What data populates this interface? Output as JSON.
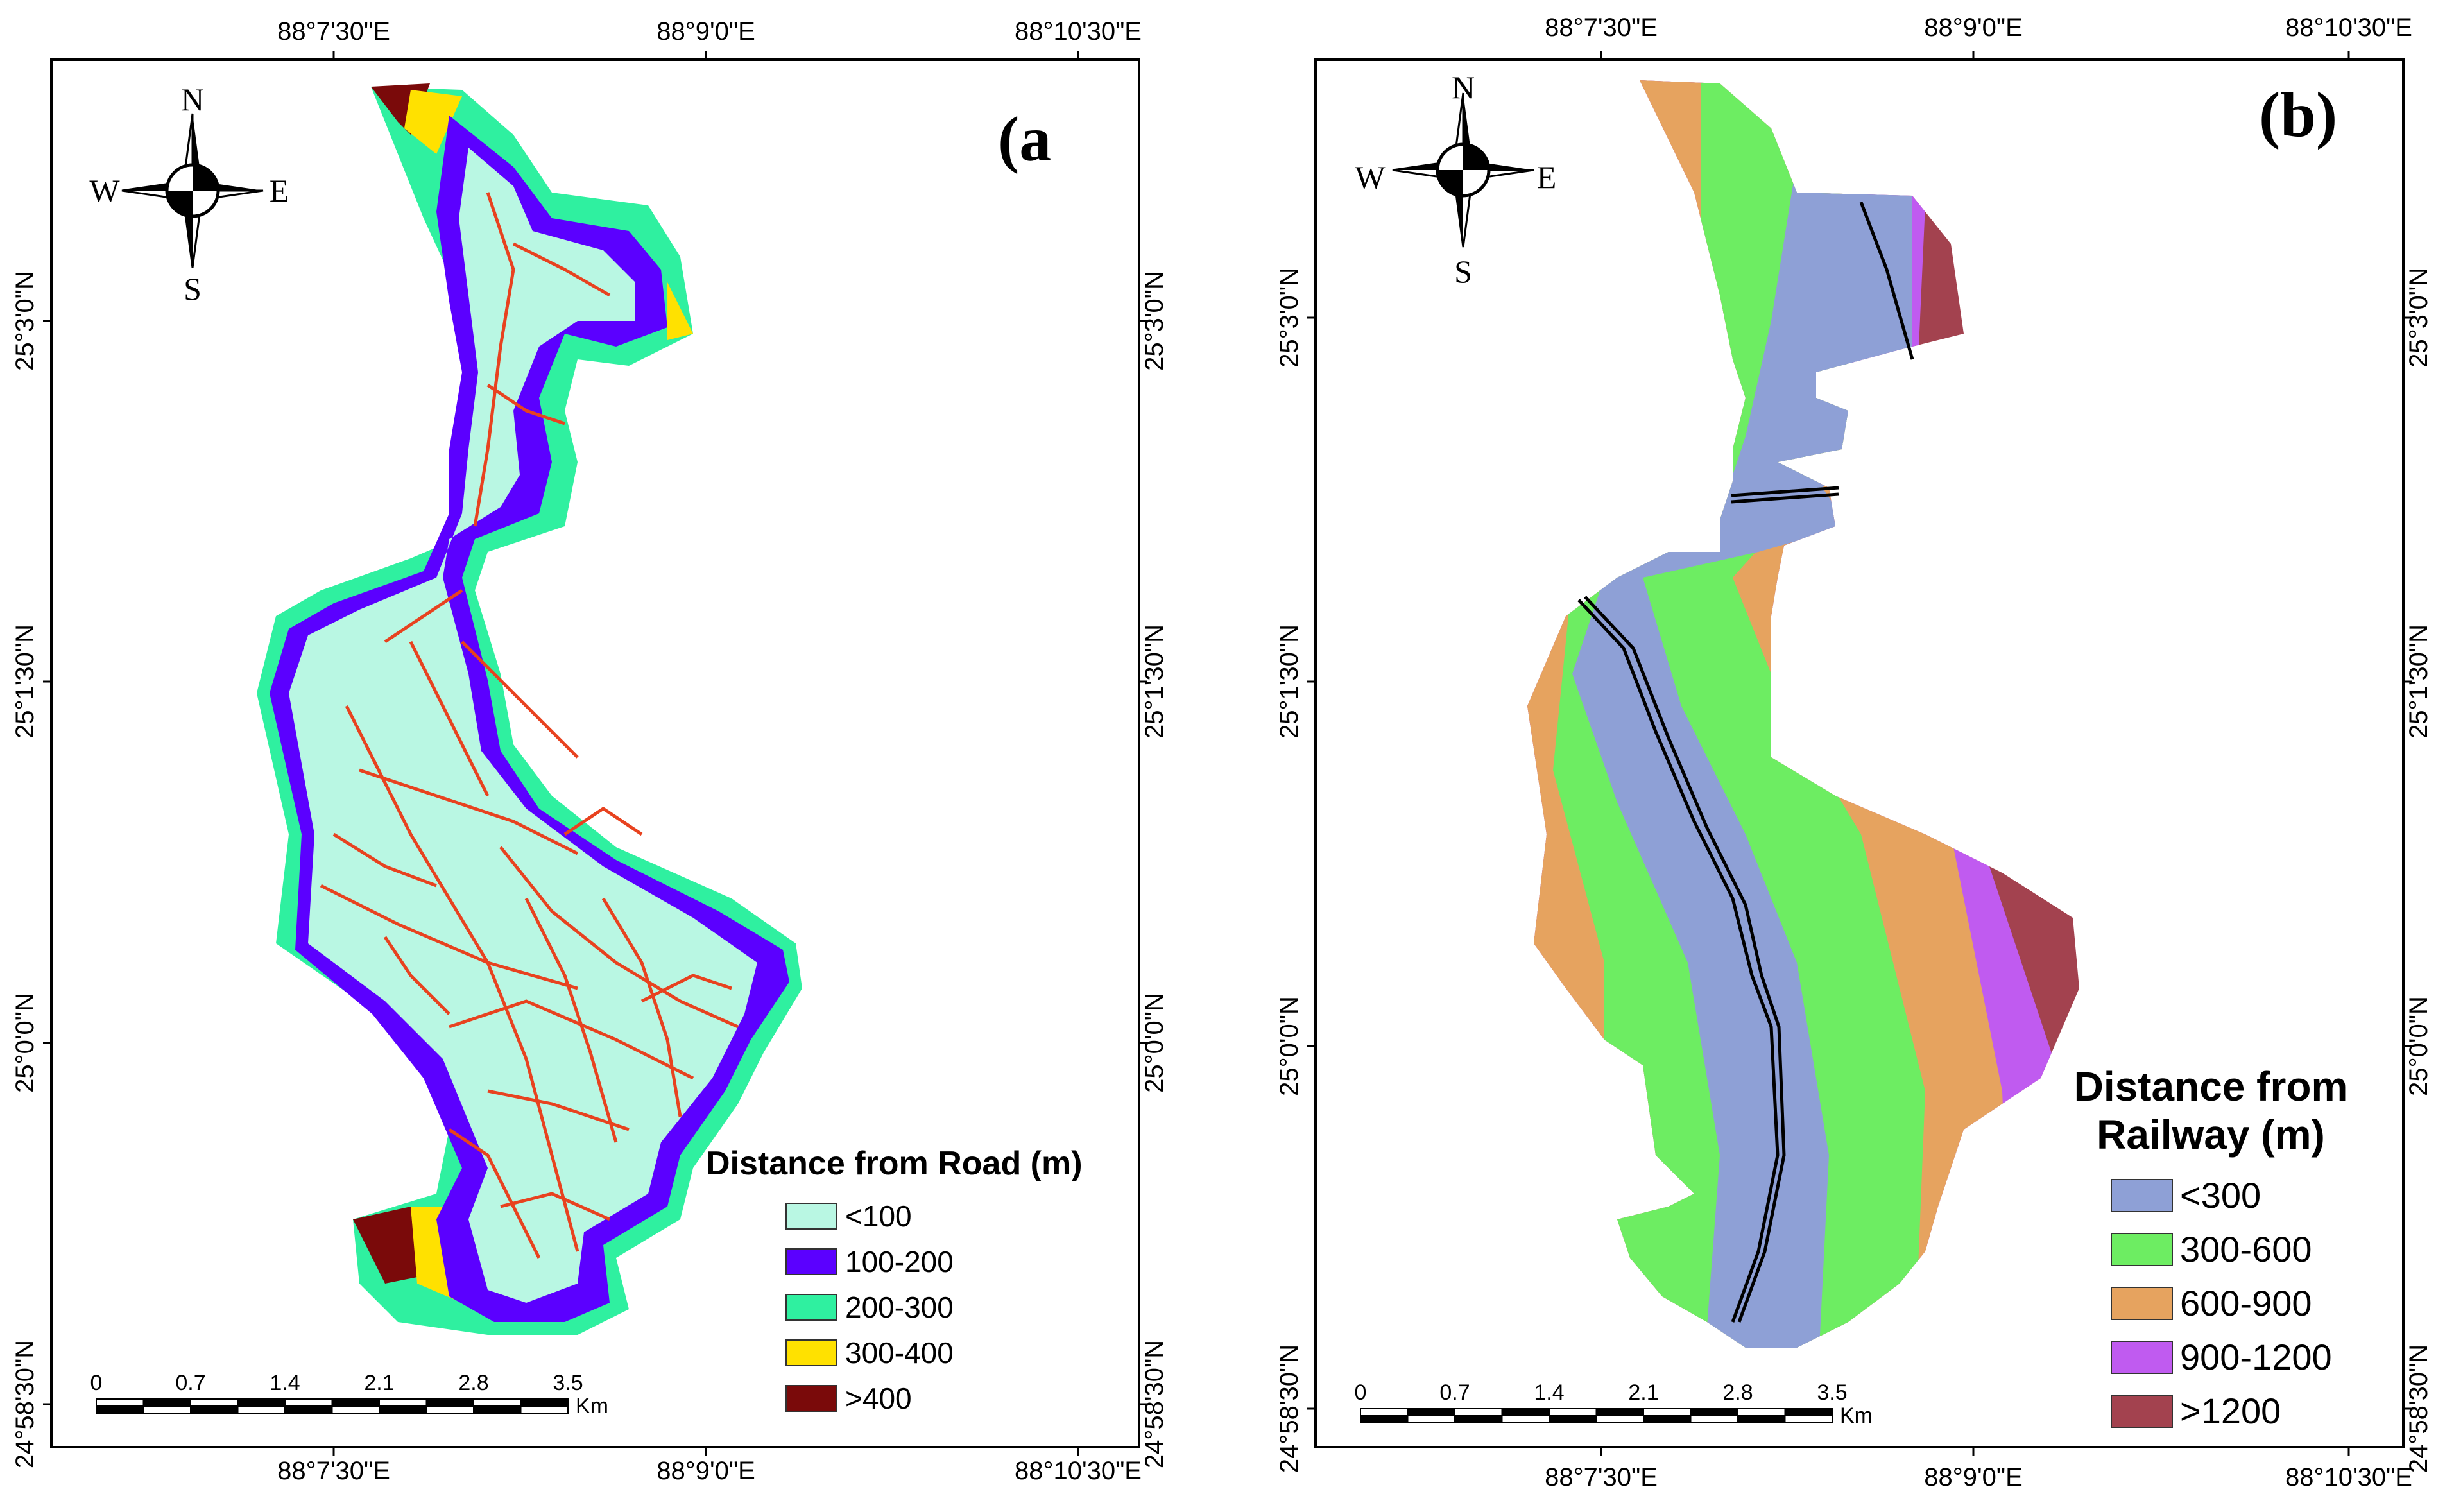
{
  "coords": {
    "lon": [
      "88°7'30\"E",
      "88°9'0\"E",
      "88°10'30\"E"
    ],
    "lat": [
      "24°58'30\"N",
      "25°0'0\"N",
      "25°1'30\"N",
      "25°3'0\"N"
    ]
  },
  "panel_a": {
    "label": "(a",
    "legend_title": "Distance from Road (m)",
    "classes": [
      {
        "label": "<100",
        "color": "#b9f7e3"
      },
      {
        "label": "100-200",
        "color": "#5b00ff"
      },
      {
        "label": "200-300",
        "color": "#2ff0a0"
      },
      {
        "label": "300-400",
        "color": "#ffe100"
      },
      {
        "label": ">400",
        "color": "#7a0a0a"
      }
    ],
    "road_color": "#e8421f"
  },
  "panel_b": {
    "label": "(b)",
    "legend_title_1": "Distance from",
    "legend_title_2": "Railway (m)",
    "classes": [
      {
        "label": "<300",
        "color": "#8ea0d6"
      },
      {
        "label": "300-600",
        "color": "#6ded62"
      },
      {
        "label": "600-900",
        "color": "#e6a35f"
      },
      {
        "label": "900-1200",
        "color": "#c05bf0"
      },
      {
        "label": ">1200",
        "color": "#a3424f"
      }
    ],
    "railway_color": "#000000"
  },
  "compass": {
    "n": "N",
    "s": "S",
    "e": "E",
    "w": "W"
  },
  "scale_bar": {
    "ticks": [
      "0",
      "0.7",
      "1.4",
      "2.1",
      "2.8",
      "3.5"
    ],
    "unit": "Km"
  }
}
